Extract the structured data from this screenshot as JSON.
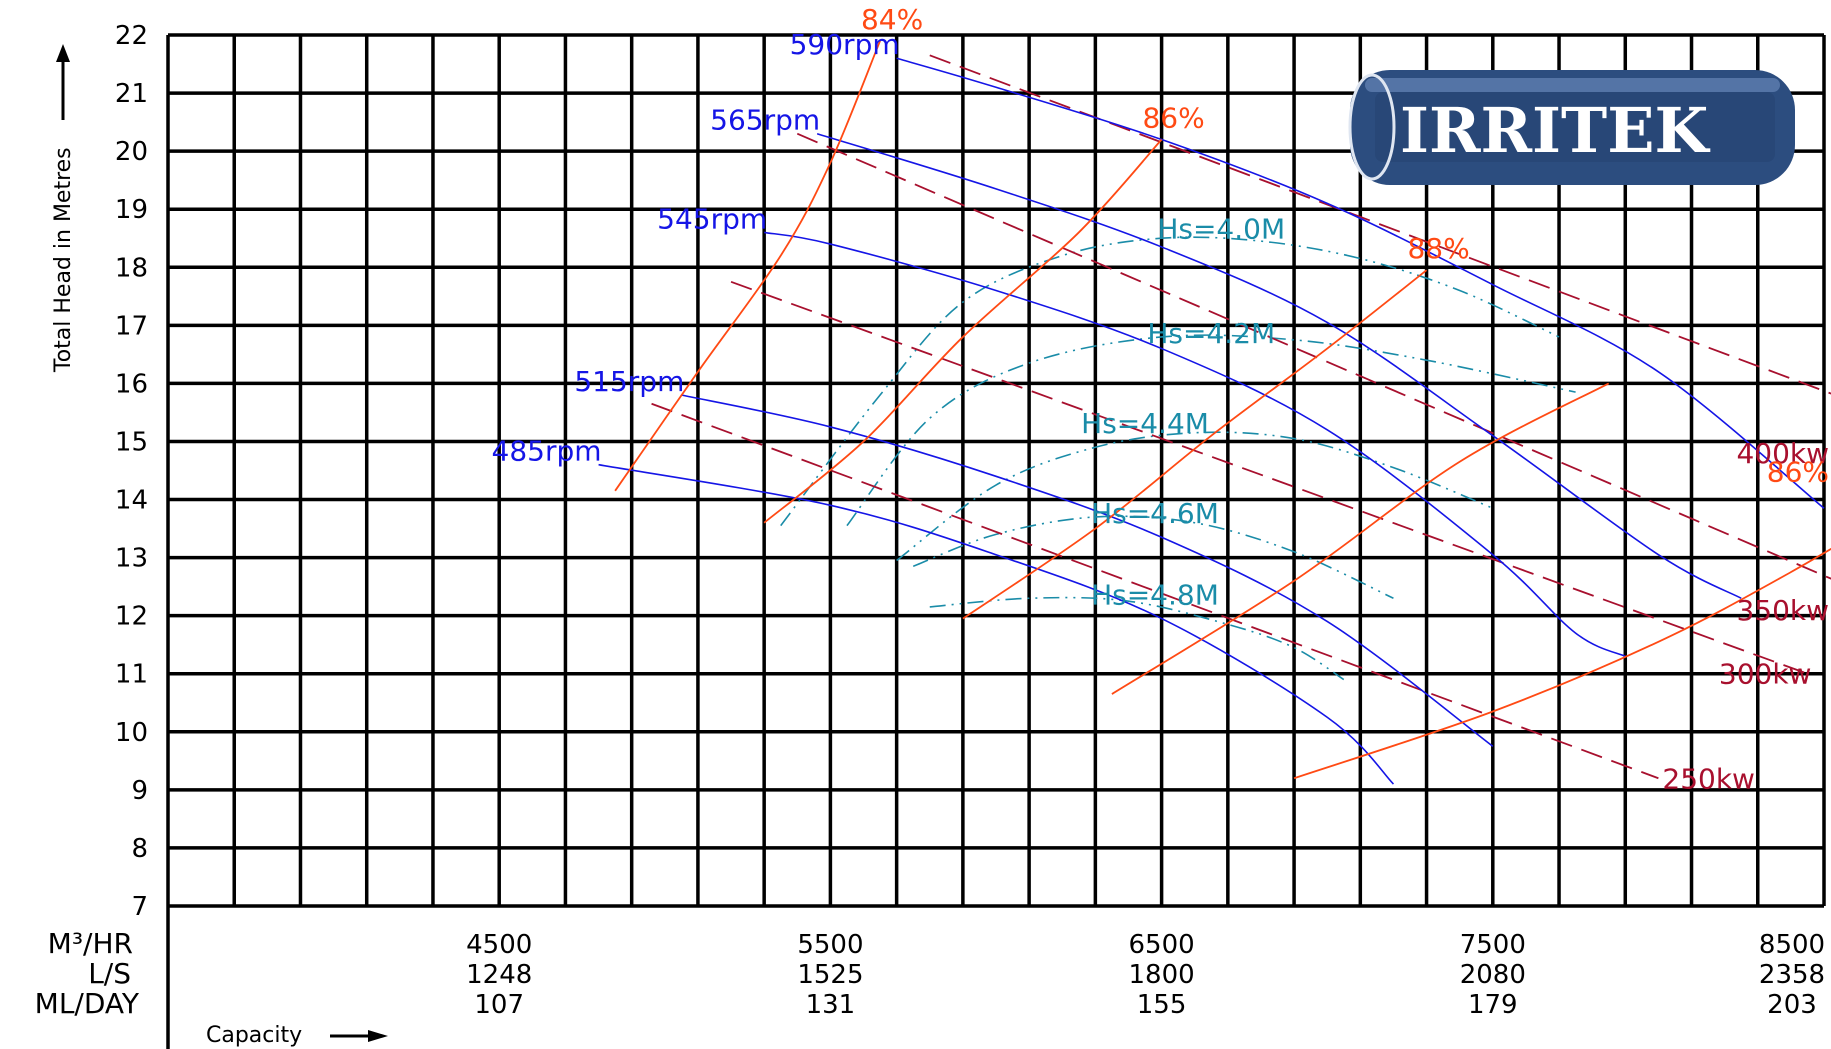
{
  "chart_data": {
    "type": "line",
    "title": "",
    "ylabel": "Total Head in Metres",
    "xlabel": "Capacity",
    "xlim": [
      3500,
      8500
    ],
    "ylim": [
      7,
      22
    ],
    "grid": true,
    "y_ticks": [
      "7",
      "8",
      "9",
      "10",
      "11",
      "12",
      "13",
      "14",
      "15",
      "16",
      "17",
      "18",
      "19",
      "20",
      "21",
      "22"
    ],
    "x_unit_labels": [
      "M³/HR",
      "L/S",
      "ML/DAY"
    ],
    "x_ticks": [
      {
        "m3hr": 4500,
        "ls": "1248",
        "mlday": "107"
      },
      {
        "m3hr": 5500,
        "ls": "1525",
        "mlday": "131"
      },
      {
        "m3hr": 6500,
        "ls": "1800",
        "mlday": "155"
      },
      {
        "m3hr": 7500,
        "ls": "2080",
        "mlday": "179"
      },
      {
        "m3hr": 8500,
        "ls": "2358",
        "mlday": "203"
      }
    ],
    "colors": {
      "speed": "#1515e6",
      "power": "#a8102e",
      "efficiency": "#ff4a14",
      "npsh": "#1a8ca8",
      "grid": "#000000"
    },
    "speed_curves": [
      {
        "label": "485rpm",
        "points": [
          [
            4800,
            14.6
          ],
          [
            5500,
            13.9
          ],
          [
            6000,
            13.05
          ],
          [
            6500,
            11.95
          ],
          [
            7000,
            10.25
          ],
          [
            7200,
            9.1
          ]
        ]
      },
      {
        "label": "515rpm",
        "points": [
          [
            5050,
            15.8
          ],
          [
            5500,
            15.25
          ],
          [
            6000,
            14.4
          ],
          [
            6500,
            13.35
          ],
          [
            7000,
            11.9
          ],
          [
            7500,
            9.75
          ]
        ]
      },
      {
        "label": "545rpm",
        "points": [
          [
            5300,
            18.6
          ],
          [
            5500,
            18.4
          ],
          [
            6000,
            17.6
          ],
          [
            6500,
            16.6
          ],
          [
            7000,
            15.2
          ],
          [
            7500,
            13.05
          ],
          [
            7750,
            11.7
          ],
          [
            7900,
            11.3
          ]
        ]
      },
      {
        "label": "565rpm",
        "points": [
          [
            5460,
            20.3
          ],
          [
            6000,
            19.35
          ],
          [
            6500,
            18.35
          ],
          [
            7000,
            17.05
          ],
          [
            7500,
            15.1
          ],
          [
            8000,
            13.05
          ],
          [
            8250,
            12.3
          ]
        ]
      },
      {
        "label": "590rpm",
        "points": [
          [
            5700,
            21.6
          ],
          [
            6000,
            21.1
          ],
          [
            6500,
            20.2
          ],
          [
            7000,
            19.1
          ],
          [
            7500,
            17.7
          ],
          [
            8000,
            16.2
          ],
          [
            8500,
            13.85
          ]
        ]
      }
    ],
    "power_curves": [
      {
        "label": "250kw",
        "points": [
          [
            4960,
            15.65
          ],
          [
            8000,
            9.2
          ]
        ]
      },
      {
        "label": "300kw",
        "points": [
          [
            5200,
            17.75
          ],
          [
            8450,
            11.0
          ]
        ]
      },
      {
        "label": "350kw",
        "points": [
          [
            5400,
            20.3
          ],
          [
            8740,
            12.1
          ]
        ]
      },
      {
        "label": "400kw",
        "points": [
          [
            5800,
            21.65
          ],
          [
            9000,
            14.8
          ]
        ]
      }
    ],
    "efficiency_curves": [
      {
        "label": "84%",
        "points": [
          [
            4850,
            14.15
          ],
          [
            5100,
            16.2
          ],
          [
            5350,
            18.2
          ],
          [
            5500,
            19.8
          ],
          [
            5650,
            21.9
          ]
        ]
      },
      {
        "label": "86%",
        "points": [
          [
            5300,
            13.6
          ],
          [
            5600,
            15.0
          ],
          [
            5900,
            16.8
          ],
          [
            6250,
            18.6
          ],
          [
            6500,
            20.2
          ]
        ]
      },
      {
        "label": "88%",
        "points": [
          [
            5900,
            11.95
          ],
          [
            6300,
            13.5
          ],
          [
            6650,
            15.1
          ],
          [
            7000,
            16.6
          ],
          [
            7300,
            17.95
          ]
        ]
      },
      {
        "label": "",
        "points": [
          [
            6350,
            10.65
          ],
          [
            6900,
            12.6
          ],
          [
            7400,
            14.65
          ],
          [
            7850,
            16.0
          ]
        ]
      },
      {
        "label": "86%",
        "points": [
          [
            6900,
            9.2
          ],
          [
            7500,
            10.35
          ],
          [
            8000,
            11.55
          ],
          [
            8400,
            12.75
          ],
          [
            8800,
            14.1
          ]
        ]
      }
    ],
    "npsh_curves": [
      {
        "label": "Hs=4.0M",
        "points": [
          [
            5350,
            13.55
          ],
          [
            5650,
            15.8
          ],
          [
            5900,
            17.4
          ],
          [
            6200,
            18.2
          ],
          [
            6500,
            18.5
          ],
          [
            6800,
            18.45
          ],
          [
            7100,
            18.15
          ],
          [
            7400,
            17.6
          ],
          [
            7700,
            16.8
          ]
        ]
      },
      {
        "label": "Hs=4.2M",
        "points": [
          [
            5550,
            13.55
          ],
          [
            5800,
            15.4
          ],
          [
            6100,
            16.35
          ],
          [
            6500,
            16.8
          ],
          [
            6900,
            16.75
          ],
          [
            7300,
            16.4
          ],
          [
            7750,
            15.85
          ]
        ]
      },
      {
        "label": "Hs=4.4M",
        "points": [
          [
            5700,
            12.95
          ],
          [
            6000,
            14.25
          ],
          [
            6300,
            14.9
          ],
          [
            6600,
            15.15
          ],
          [
            6900,
            15.05
          ],
          [
            7200,
            14.55
          ],
          [
            7500,
            13.85
          ]
        ]
      },
      {
        "label": "Hs=4.6M",
        "points": [
          [
            5750,
            12.85
          ],
          [
            6000,
            13.4
          ],
          [
            6300,
            13.7
          ],
          [
            6600,
            13.6
          ],
          [
            6900,
            13.1
          ],
          [
            7200,
            12.3
          ]
        ]
      },
      {
        "label": "Hs=4.8M",
        "points": [
          [
            5800,
            12.15
          ],
          [
            6100,
            12.3
          ],
          [
            6400,
            12.25
          ],
          [
            6700,
            11.85
          ],
          [
            6900,
            11.45
          ],
          [
            7050,
            10.9
          ]
        ]
      }
    ]
  },
  "logo": {
    "text": "IRRITEK"
  }
}
